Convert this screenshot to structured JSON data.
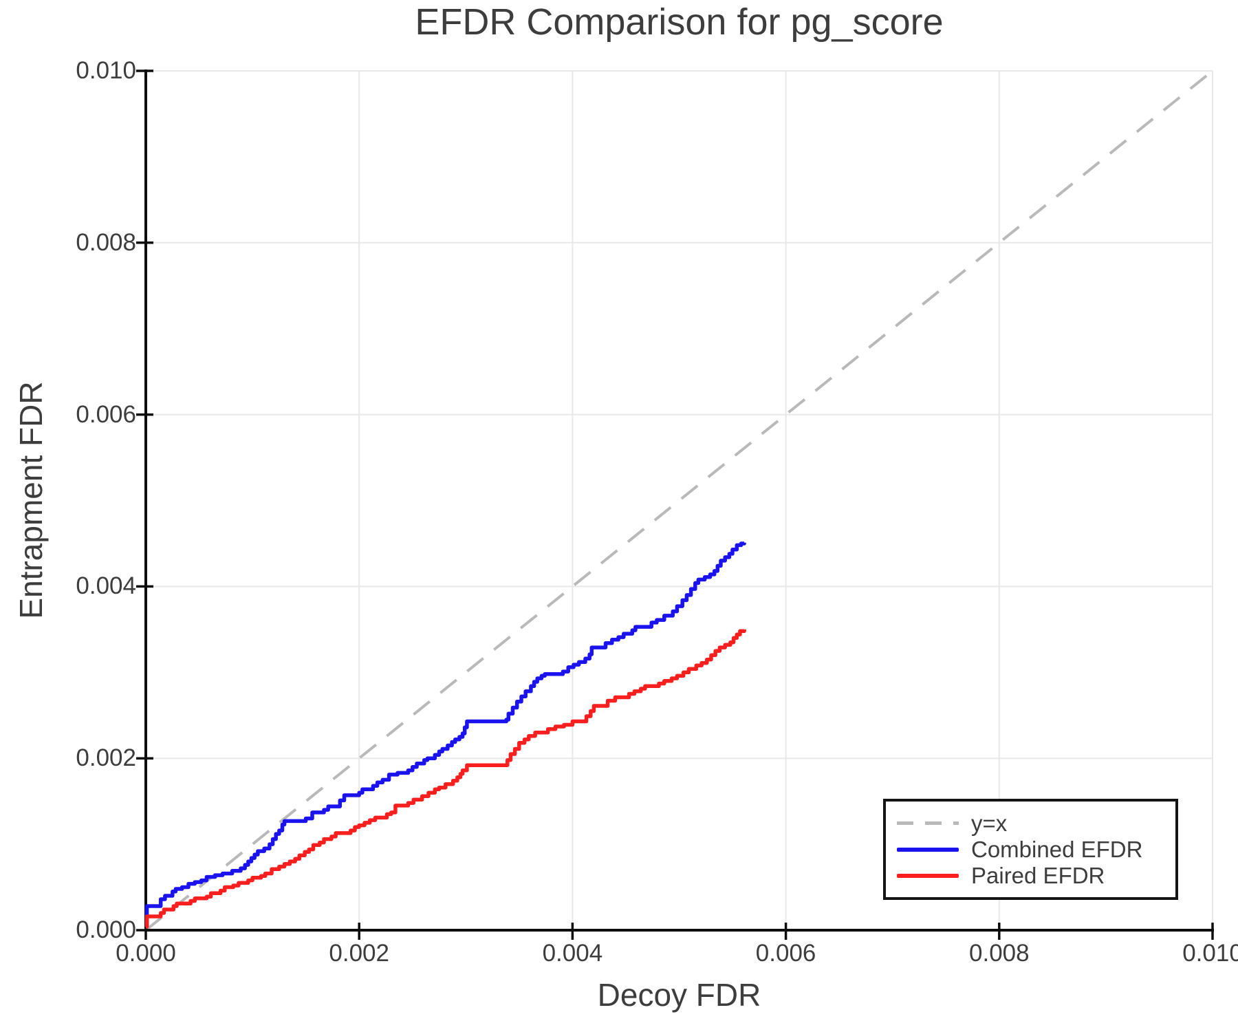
{
  "title": "EFDR Comparison for pg_score",
  "colors": {
    "background": "#ffffff",
    "text": "#3d3d3d",
    "axis": "#0d0d0d",
    "grid": "#e8e8e8",
    "reference": "#b9b9b9",
    "combined": "#1a12ef",
    "paired": "#f91f1f"
  },
  "legend": {
    "items": [
      {
        "label": "y=x",
        "style": "dashed",
        "color": "#b9b9b9"
      },
      {
        "label": "Combined EFDR",
        "style": "solid",
        "color": "#1a12ef"
      },
      {
        "label": "Paired EFDR",
        "style": "solid",
        "color": "#f91f1f"
      }
    ]
  },
  "chart_data": {
    "type": "line",
    "title": "EFDR Comparison for pg_score",
    "xlabel": "Decoy FDR",
    "ylabel": "Entrapment FDR",
    "xlim": [
      0.0,
      0.01
    ],
    "ylim": [
      0.0,
      0.01
    ],
    "xtick_values": [
      0.0,
      0.002,
      0.004,
      0.006,
      0.008,
      0.01
    ],
    "xtick_labels": [
      "0.000",
      "0.002",
      "0.004",
      "0.006",
      "0.008",
      "0.010"
    ],
    "ytick_values": [
      0.0,
      0.002,
      0.004,
      0.006,
      0.008,
      0.01
    ],
    "ytick_labels": [
      "0.000",
      "0.002",
      "0.004",
      "0.006",
      "0.008",
      "0.010"
    ],
    "grid": true,
    "legend_position": "bottom-right",
    "reference_line": {
      "label": "y=x",
      "from": [
        0.0,
        0.0
      ],
      "to": [
        0.01,
        0.01
      ],
      "style": "dashed",
      "color": "#b9b9b9"
    },
    "series": [
      {
        "name": "Combined EFDR",
        "color": "#1a12ef",
        "step": true,
        "points": [
          [
            0.0,
            5e-05
          ],
          [
            1e-05,
            0.00028
          ],
          [
            0.00014,
            0.00036
          ],
          [
            0.00018,
            0.0004
          ],
          [
            0.00025,
            0.00045
          ],
          [
            0.00028,
            0.00048
          ],
          [
            0.00034,
            0.0005
          ],
          [
            0.0004,
            0.00054
          ],
          [
            0.00046,
            0.00056
          ],
          [
            0.00052,
            0.00058
          ],
          [
            0.00057,
            0.00062
          ],
          [
            0.00065,
            0.00064
          ],
          [
            0.00072,
            0.00066
          ],
          [
            0.00081,
            0.00069
          ],
          [
            0.00089,
            0.00072
          ],
          [
            0.00093,
            0.00076
          ],
          [
            0.00096,
            0.0008
          ],
          [
            0.00099,
            0.00084
          ],
          [
            0.00102,
            0.00088
          ],
          [
            0.00105,
            0.00092
          ],
          [
            0.00111,
            0.00095
          ],
          [
            0.00116,
            0.001
          ],
          [
            0.00119,
            0.00106
          ],
          [
            0.00122,
            0.00112
          ],
          [
            0.00125,
            0.00116
          ],
          [
            0.00128,
            0.00123
          ],
          [
            0.0013,
            0.00127
          ],
          [
            0.0015,
            0.0013
          ],
          [
            0.00156,
            0.00137
          ],
          [
            0.00167,
            0.0014
          ],
          [
            0.00171,
            0.00144
          ],
          [
            0.00182,
            0.00151
          ],
          [
            0.00186,
            0.00157
          ],
          [
            0.002,
            0.0016
          ],
          [
            0.00203,
            0.00164
          ],
          [
            0.00213,
            0.00168
          ],
          [
            0.00217,
            0.00172
          ],
          [
            0.00222,
            0.00175
          ],
          [
            0.00228,
            0.00181
          ],
          [
            0.00236,
            0.00183
          ],
          [
            0.00246,
            0.00186
          ],
          [
            0.0025,
            0.0019
          ],
          [
            0.00254,
            0.00194
          ],
          [
            0.00261,
            0.00198
          ],
          [
            0.00264,
            0.002
          ],
          [
            0.00271,
            0.00204
          ],
          [
            0.00275,
            0.00208
          ],
          [
            0.00278,
            0.00211
          ],
          [
            0.00283,
            0.00215
          ],
          [
            0.00287,
            0.00219
          ],
          [
            0.0029,
            0.00222
          ],
          [
            0.00294,
            0.00225
          ],
          [
            0.00297,
            0.00229
          ],
          [
            0.00299,
            0.00236
          ],
          [
            0.00301,
            0.00243
          ],
          [
            0.00338,
            0.00245
          ],
          [
            0.0034,
            0.00252
          ],
          [
            0.00344,
            0.00259
          ],
          [
            0.00348,
            0.00266
          ],
          [
            0.00352,
            0.00272
          ],
          [
            0.00356,
            0.00278
          ],
          [
            0.00361,
            0.00284
          ],
          [
            0.00364,
            0.00289
          ],
          [
            0.00367,
            0.00293
          ],
          [
            0.00371,
            0.00296
          ],
          [
            0.00374,
            0.00298
          ],
          [
            0.00391,
            0.00301
          ],
          [
            0.00396,
            0.00306
          ],
          [
            0.00401,
            0.00309
          ],
          [
            0.00406,
            0.00312
          ],
          [
            0.00412,
            0.00316
          ],
          [
            0.00416,
            0.00321
          ],
          [
            0.00418,
            0.00329
          ],
          [
            0.00431,
            0.00334
          ],
          [
            0.00437,
            0.00338
          ],
          [
            0.00443,
            0.00341
          ],
          [
            0.00448,
            0.00345
          ],
          [
            0.00456,
            0.00349
          ],
          [
            0.00459,
            0.00353
          ],
          [
            0.00474,
            0.00358
          ],
          [
            0.00479,
            0.00361
          ],
          [
            0.00486,
            0.00366
          ],
          [
            0.00494,
            0.00371
          ],
          [
            0.00498,
            0.00377
          ],
          [
            0.00503,
            0.00384
          ],
          [
            0.00507,
            0.0039
          ],
          [
            0.00511,
            0.00397
          ],
          [
            0.00515,
            0.00404
          ],
          [
            0.00518,
            0.00408
          ],
          [
            0.00524,
            0.00411
          ],
          [
            0.00529,
            0.00414
          ],
          [
            0.00533,
            0.00418
          ],
          [
            0.00536,
            0.00424
          ],
          [
            0.00539,
            0.0043
          ],
          [
            0.00543,
            0.00434
          ],
          [
            0.00547,
            0.00438
          ],
          [
            0.0055,
            0.00443
          ],
          [
            0.00554,
            0.00448
          ],
          [
            0.00558,
            0.0045
          ],
          [
            0.00561,
            0.00451
          ]
        ]
      },
      {
        "name": "Paired EFDR",
        "color": "#f91f1f",
        "step": true,
        "points": [
          [
            0.0,
            4e-05
          ],
          [
            1e-05,
            0.00016
          ],
          [
            0.00014,
            0.0002
          ],
          [
            0.00017,
            0.00024
          ],
          [
            0.00026,
            0.00028
          ],
          [
            0.00029,
            0.00031
          ],
          [
            0.00042,
            0.00034
          ],
          [
            0.00046,
            0.00037
          ],
          [
            0.00057,
            0.00039
          ],
          [
            0.00061,
            0.00043
          ],
          [
            0.0007,
            0.00046
          ],
          [
            0.00074,
            0.0005
          ],
          [
            0.00082,
            0.00052
          ],
          [
            0.00087,
            0.00055
          ],
          [
            0.00096,
            0.00058
          ],
          [
            0.001,
            0.00061
          ],
          [
            0.00108,
            0.00063
          ],
          [
            0.00112,
            0.00066
          ],
          [
            0.00118,
            0.00071
          ],
          [
            0.00125,
            0.00074
          ],
          [
            0.0013,
            0.00077
          ],
          [
            0.00135,
            0.0008
          ],
          [
            0.0014,
            0.00083
          ],
          [
            0.00144,
            0.00087
          ],
          [
            0.00149,
            0.00091
          ],
          [
            0.00153,
            0.00094
          ],
          [
            0.00157,
            0.00099
          ],
          [
            0.00163,
            0.00102
          ],
          [
            0.00167,
            0.00106
          ],
          [
            0.00174,
            0.00109
          ],
          [
            0.00178,
            0.00113
          ],
          [
            0.00192,
            0.00116
          ],
          [
            0.00196,
            0.0012
          ],
          [
            0.002,
            0.00122
          ],
          [
            0.00205,
            0.00125
          ],
          [
            0.0021,
            0.00128
          ],
          [
            0.00215,
            0.00131
          ],
          [
            0.00226,
            0.00135
          ],
          [
            0.0023,
            0.00137
          ],
          [
            0.00234,
            0.00145
          ],
          [
            0.00246,
            0.00148
          ],
          [
            0.00251,
            0.00152
          ],
          [
            0.00259,
            0.00156
          ],
          [
            0.00265,
            0.0016
          ],
          [
            0.00271,
            0.00164
          ],
          [
            0.00275,
            0.00166
          ],
          [
            0.00281,
            0.0017
          ],
          [
            0.00288,
            0.00174
          ],
          [
            0.00292,
            0.00178
          ],
          [
            0.00295,
            0.00182
          ],
          [
            0.00297,
            0.00186
          ],
          [
            0.00301,
            0.00192
          ],
          [
            0.00339,
            0.00198
          ],
          [
            0.00342,
            0.00205
          ],
          [
            0.00346,
            0.00211
          ],
          [
            0.0035,
            0.00218
          ],
          [
            0.00355,
            0.00222
          ],
          [
            0.00359,
            0.00226
          ],
          [
            0.00365,
            0.0023
          ],
          [
            0.00377,
            0.00234
          ],
          [
            0.00384,
            0.00237
          ],
          [
            0.00392,
            0.00239
          ],
          [
            0.004,
            0.00243
          ],
          [
            0.00413,
            0.00249
          ],
          [
            0.00417,
            0.00255
          ],
          [
            0.0042,
            0.00261
          ],
          [
            0.00433,
            0.00267
          ],
          [
            0.0044,
            0.00271
          ],
          [
            0.00453,
            0.00275
          ],
          [
            0.00458,
            0.00278
          ],
          [
            0.00464,
            0.00281
          ],
          [
            0.00468,
            0.00284
          ],
          [
            0.00481,
            0.00287
          ],
          [
            0.00486,
            0.0029
          ],
          [
            0.00493,
            0.00293
          ],
          [
            0.00498,
            0.00296
          ],
          [
            0.00504,
            0.003
          ],
          [
            0.00509,
            0.00304
          ],
          [
            0.00516,
            0.00308
          ],
          [
            0.00521,
            0.00311
          ],
          [
            0.00526,
            0.00315
          ],
          [
            0.0053,
            0.0032
          ],
          [
            0.00534,
            0.00325
          ],
          [
            0.00538,
            0.00329
          ],
          [
            0.00543,
            0.00332
          ],
          [
            0.00548,
            0.00335
          ],
          [
            0.00551,
            0.0034
          ],
          [
            0.00554,
            0.00344
          ],
          [
            0.00557,
            0.00348
          ],
          [
            0.00561,
            0.0035
          ]
        ]
      }
    ]
  }
}
